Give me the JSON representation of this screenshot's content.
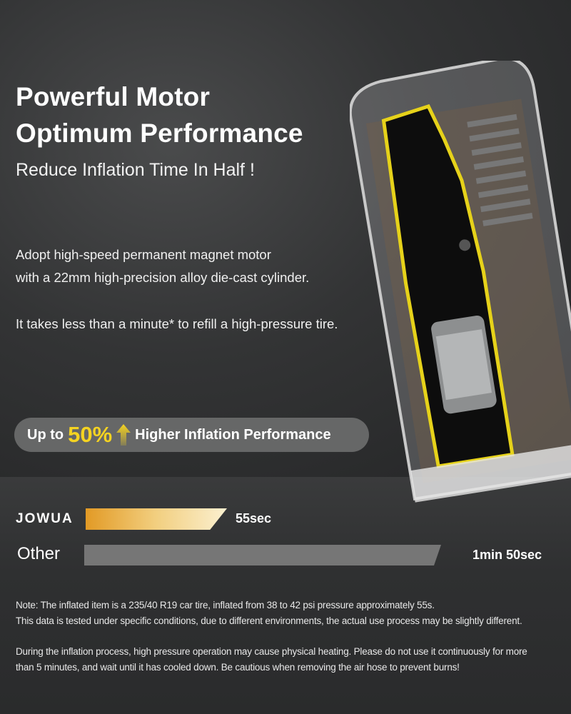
{
  "headline": {
    "line1": "Powerful Motor",
    "line2": "Optimum Performance",
    "subtitle": "Reduce Inflation Time In Half !"
  },
  "description": {
    "line1": "Adopt high-speed permanent magnet motor",
    "line2": "with a 22mm high-precision alloy die-cast cylinder.",
    "line3": "It takes less than a minute* to refill a high-pressure tire."
  },
  "badge": {
    "prefix": "Up to",
    "percent": "50%",
    "icon": "arrow-up-icon",
    "suffix": "Higher Inflation Performance",
    "accent": "#f5d321"
  },
  "comparison": {
    "brand": "JOWUA",
    "brand_time": "55sec",
    "brand_color": "#e29a25",
    "other": "Other",
    "other_time": "1min 50sec",
    "other_color": "#767676"
  },
  "notes": {
    "line1": "Note:  The inflated item is a 235/40 R19 car tire, inflated from 38 to 42 psi pressure approximately 55s.",
    "line2": "This data is tested under specific conditions, due to different environments, the actual use process may be slightly different.",
    "line3": "During the inflation process, high pressure operation may cause physical heating. Please do not use it continuously for more",
    "line4": "than 5 minutes, and wait until it has cooled down. Be cautious when removing the air hose to prevent burns!"
  }
}
